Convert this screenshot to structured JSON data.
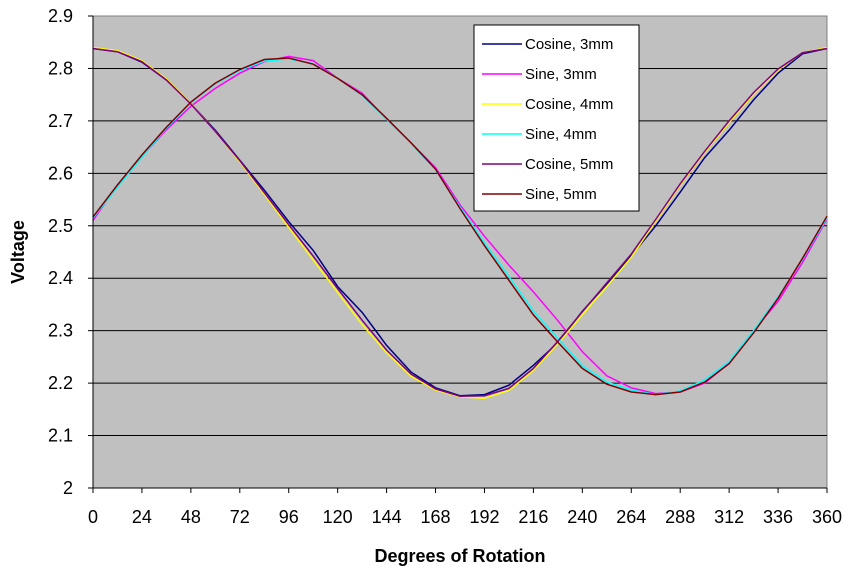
{
  "chart_data": {
    "type": "line",
    "title": "",
    "xlabel": "Degrees of Rotation",
    "ylabel": "Voltage",
    "xlim": [
      0,
      360
    ],
    "ylim": [
      2,
      2.9
    ],
    "x_ticks": [
      "0",
      "24",
      "48",
      "72",
      "96",
      "120",
      "144",
      "168",
      "192",
      "216",
      "240",
      "264",
      "288",
      "312",
      "336",
      "360"
    ],
    "y_ticks": [
      "2",
      "2.1",
      "2.2",
      "2.3",
      "2.4",
      "2.5",
      "2.6",
      "2.7",
      "2.8",
      "2.9"
    ],
    "grid": "horizontal",
    "plot_background": "#c0c0c0",
    "legend_position": "top-right",
    "x": [
      0,
      12,
      24,
      36,
      48,
      60,
      72,
      84,
      96,
      108,
      120,
      132,
      144,
      156,
      168,
      180,
      192,
      204,
      216,
      228,
      240,
      252,
      264,
      276,
      288,
      300,
      312,
      324,
      336,
      348,
      360
    ],
    "series": [
      {
        "name": "Cosine, 3mm",
        "color": "#000080",
        "values": [
          2.838,
          2.832,
          2.812,
          2.778,
          2.733,
          2.682,
          2.625,
          2.568,
          2.508,
          2.453,
          2.384,
          2.335,
          2.272,
          2.221,
          2.191,
          2.176,
          2.178,
          2.196,
          2.234,
          2.277,
          2.337,
          2.389,
          2.443,
          2.5,
          2.564,
          2.63,
          2.682,
          2.74,
          2.791,
          2.828,
          2.838
        ]
      },
      {
        "name": "Sine, 3mm",
        "color": "#ff00ff",
        "values": [
          2.51,
          2.578,
          2.632,
          2.683,
          2.728,
          2.762,
          2.791,
          2.813,
          2.823,
          2.815,
          2.781,
          2.753,
          2.703,
          2.658,
          2.611,
          2.54,
          2.48,
          2.425,
          2.374,
          2.319,
          2.26,
          2.214,
          2.191,
          2.18,
          2.183,
          2.2,
          2.238,
          2.3,
          2.356,
          2.43,
          2.513
        ]
      },
      {
        "name": "Cosine, 4mm",
        "color": "#ffff00",
        "values": [
          2.84,
          2.834,
          2.815,
          2.78,
          2.733,
          2.68,
          2.622,
          2.56,
          2.497,
          2.435,
          2.373,
          2.312,
          2.258,
          2.213,
          2.187,
          2.174,
          2.171,
          2.186,
          2.224,
          2.275,
          2.33,
          2.384,
          2.44,
          2.509,
          2.578,
          2.64,
          2.697,
          2.751,
          2.797,
          2.83,
          2.84
        ]
      },
      {
        "name": "Sine, 4mm",
        "color": "#00ffff",
        "values": [
          2.515,
          2.574,
          2.631,
          2.686,
          2.735,
          2.771,
          2.796,
          2.814,
          2.818,
          2.809,
          2.781,
          2.749,
          2.703,
          2.657,
          2.607,
          2.536,
          2.467,
          2.403,
          2.337,
          2.285,
          2.233,
          2.202,
          2.187,
          2.178,
          2.185,
          2.206,
          2.241,
          2.3,
          2.364,
          2.436,
          2.515
        ]
      },
      {
        "name": "Cosine, 5mm",
        "color": "#800080",
        "values": [
          2.838,
          2.832,
          2.813,
          2.778,
          2.732,
          2.68,
          2.624,
          2.563,
          2.502,
          2.442,
          2.38,
          2.32,
          2.263,
          2.217,
          2.189,
          2.175,
          2.176,
          2.19,
          2.228,
          2.28,
          2.336,
          2.391,
          2.446,
          2.512,
          2.58,
          2.642,
          2.7,
          2.754,
          2.799,
          2.83,
          2.838
        ]
      },
      {
        "name": "Sine, 5mm",
        "color": "#800000",
        "values": [
          2.517,
          2.578,
          2.635,
          2.688,
          2.736,
          2.772,
          2.798,
          2.817,
          2.82,
          2.808,
          2.781,
          2.75,
          2.705,
          2.658,
          2.608,
          2.533,
          2.462,
          2.396,
          2.33,
          2.278,
          2.228,
          2.198,
          2.183,
          2.178,
          2.183,
          2.202,
          2.237,
          2.296,
          2.362,
          2.438,
          2.518
        ]
      }
    ]
  }
}
